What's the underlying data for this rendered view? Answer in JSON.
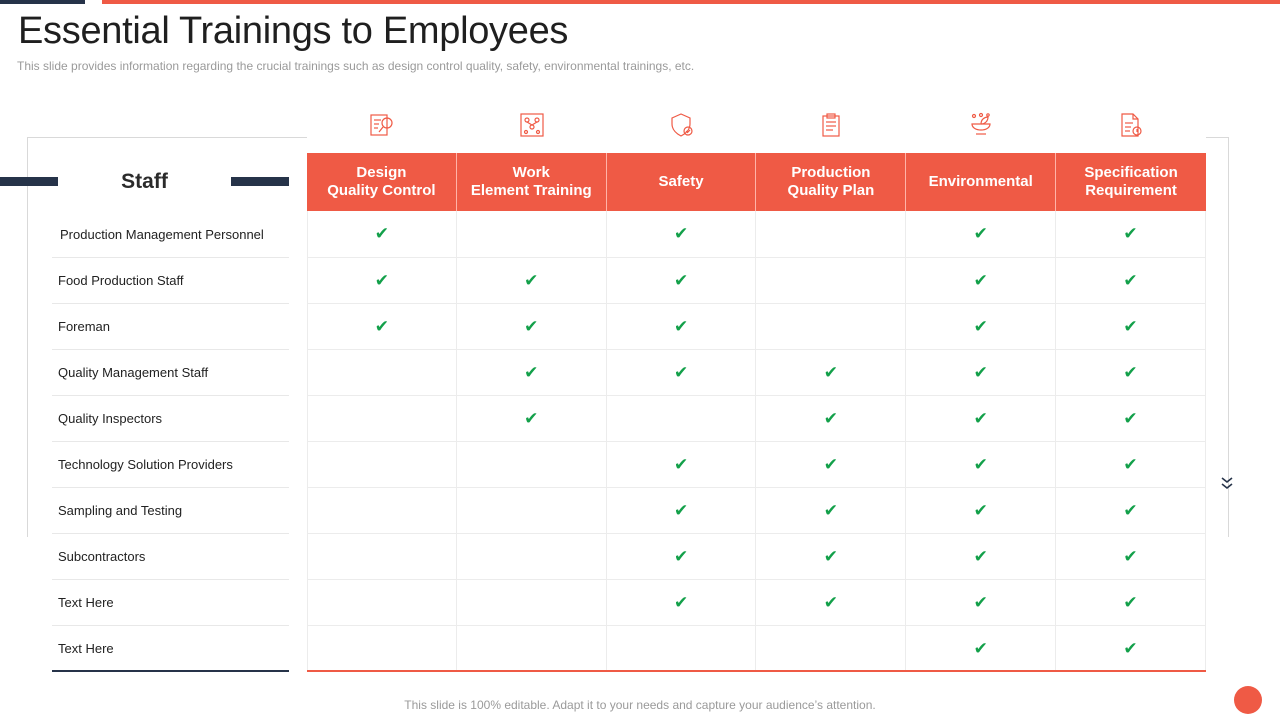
{
  "slide": {
    "title": "Essential Trainings to Employees",
    "subtitle": "This slide provides information regarding the crucial trainings such as design control quality, safety,  environmental trainings, etc.",
    "footer": "This slide is 100% editable. Adapt it to your needs and capture your audience’s attention.",
    "accent_color": "#ef5a45",
    "dark_color": "#263349",
    "check_color": "#13a04a"
  },
  "table": {
    "staff_header": "Staff",
    "check_glyph": "✔",
    "columns": [
      {
        "label": "Design\nQuality Control",
        "icon": "design-quality-icon"
      },
      {
        "label": "Work\nElement Training",
        "icon": "work-element-icon"
      },
      {
        "label": "Safety",
        "icon": "safety-icon"
      },
      {
        "label": "Production\nQuality Plan",
        "icon": "clipboard-icon"
      },
      {
        "label": "Environmental",
        "icon": "environmental-icon"
      },
      {
        "label": "Specification\nRequirement",
        "icon": "specification-icon"
      }
    ],
    "rows": [
      {
        "label": "Production Management  Personnel",
        "checks": [
          true,
          false,
          true,
          false,
          true,
          true
        ]
      },
      {
        "label": "Food Production Staff",
        "checks": [
          true,
          true,
          true,
          false,
          true,
          true
        ]
      },
      {
        "label": "Foreman",
        "checks": [
          true,
          true,
          true,
          false,
          true,
          true
        ]
      },
      {
        "label": "Quality Management  Staff",
        "checks": [
          false,
          true,
          true,
          true,
          true,
          true
        ]
      },
      {
        "label": "Quality Inspectors",
        "checks": [
          false,
          true,
          false,
          true,
          true,
          true
        ]
      },
      {
        "label": "Technology  Solution Providers",
        "checks": [
          false,
          false,
          true,
          true,
          true,
          true
        ]
      },
      {
        "label": "Sampling and Testing",
        "checks": [
          false,
          false,
          true,
          true,
          true,
          true
        ]
      },
      {
        "label": "Subcontractors",
        "checks": [
          false,
          false,
          true,
          true,
          true,
          true
        ]
      },
      {
        "label": "Text Here",
        "checks": [
          false,
          false,
          true,
          true,
          true,
          true
        ]
      },
      {
        "label": "Text Here",
        "checks": [
          false,
          false,
          false,
          false,
          true,
          true
        ]
      }
    ]
  }
}
